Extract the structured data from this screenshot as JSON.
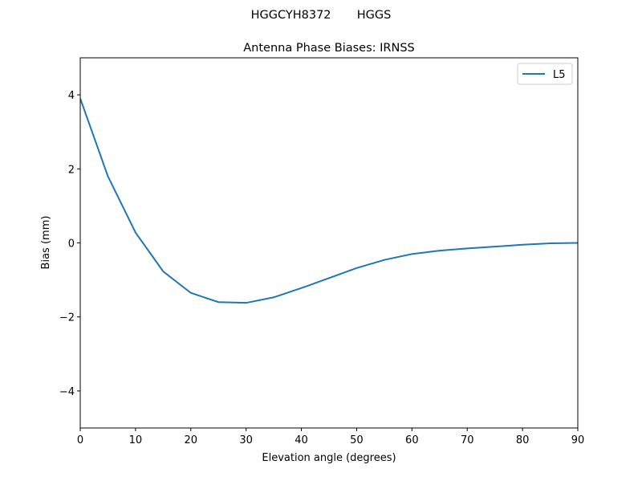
{
  "chart_data": {
    "type": "line",
    "suptitle": "HGGCYH8372       HGGS",
    "title": "Antenna Phase Biases: IRNSS",
    "xlabel": "Elevation angle (degrees)",
    "ylabel": "Bias (mm)",
    "x": [
      0,
      5,
      10,
      15,
      20,
      25,
      30,
      35,
      40,
      45,
      50,
      55,
      60,
      65,
      70,
      75,
      80,
      85,
      90
    ],
    "series": [
      {
        "name": "L5",
        "color": "#1f77b4",
        "values": [
          3.9,
          1.8,
          0.28,
          -0.77,
          -1.35,
          -1.6,
          -1.62,
          -1.47,
          -1.22,
          -0.95,
          -0.68,
          -0.46,
          -0.3,
          -0.21,
          -0.15,
          -0.1,
          -0.05,
          -0.01,
          0.0
        ]
      }
    ],
    "xlim": [
      0,
      90
    ],
    "ylim": [
      -5,
      5
    ],
    "xticks": [
      0,
      10,
      20,
      30,
      40,
      50,
      60,
      70,
      80,
      90
    ],
    "yticks": [
      {
        "value": -4,
        "label": "−4"
      },
      {
        "value": -2,
        "label": "−2"
      },
      0,
      2,
      4
    ],
    "legend": "upper right",
    "grid": false
  }
}
